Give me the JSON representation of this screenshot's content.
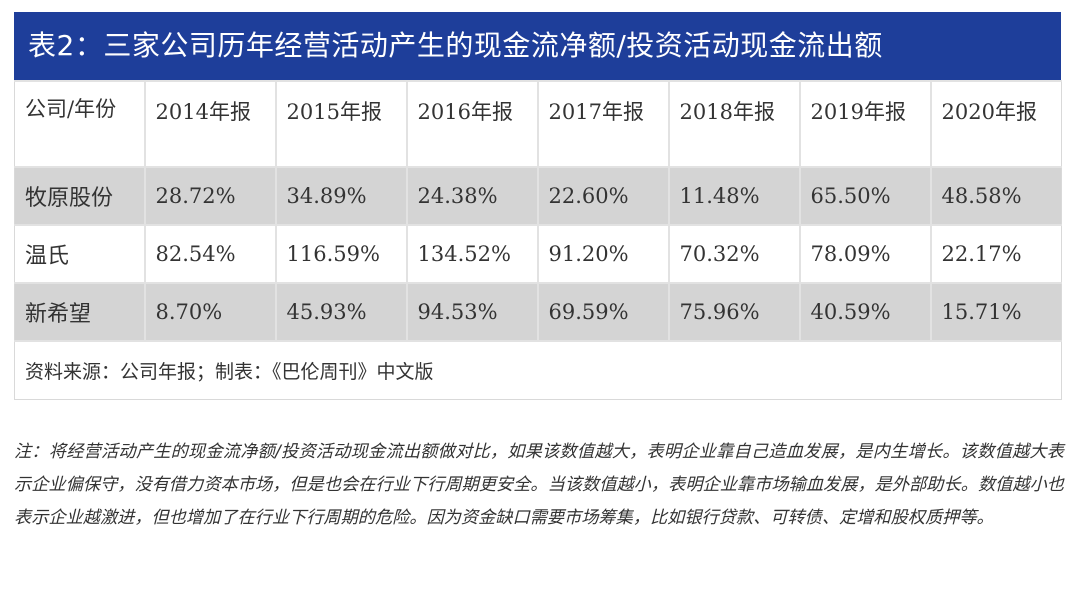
{
  "title": "表2：三家公司历年经营活动产生的现金流净额/投资活动现金流出额",
  "table": {
    "corner_header": "公司/年份",
    "years": [
      "2014年报",
      "2015年报",
      "2016年报",
      "2017年报",
      "2018年报",
      "2019年报",
      "2020年报"
    ],
    "rows": [
      {
        "company": "牧原股份",
        "values": [
          "28.72%",
          "34.89%",
          "24.38%",
          "22.60%",
          "11.48%",
          "65.50%",
          "48.58%"
        ]
      },
      {
        "company": "温氏",
        "values": [
          "82.54%",
          "116.59%",
          "134.52%",
          "91.20%",
          "70.32%",
          "78.09%",
          "22.17%"
        ]
      },
      {
        "company": "新希望",
        "values": [
          "8.70%",
          "45.93%",
          "94.53%",
          "69.59%",
          "75.96%",
          "40.59%",
          "15.71%"
        ]
      }
    ],
    "source": "资料来源：公司年报；制表：《巴伦周刊》中文版"
  },
  "note": "注：将经营活动产生的现金流净额/投资活动现金流出额做对比，如果该数值越大，表明企业靠自己造血发展，是内生增长。该数值越大表示企业偏保守，没有借力资本市场，但是也会在行业下行周期更安全。当该数值越小，表明企业靠市场输血发展，是外部助长。数值越小也表示企业越激进，但也增加了在行业下行周期的危险。因为资金缺口需要市场筹集，比如银行贷款、可转债、定增和股权质押等。",
  "colors": {
    "title_bg": "#1e3e9a",
    "title_text": "#ffffff",
    "shaded_row": "#d4d4d4",
    "text": "#333333"
  }
}
